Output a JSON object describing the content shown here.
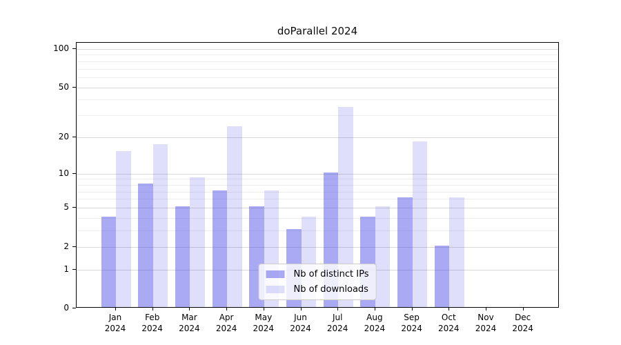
{
  "title": "doParallel 2024",
  "legend": {
    "items": [
      {
        "label": "Nb of distinct IPs",
        "series": "ips"
      },
      {
        "label": "Nb of downloads",
        "series": "downloads"
      }
    ]
  },
  "axes": {
    "y_ticks": [
      {
        "label": "100",
        "value": 100
      },
      {
        "label": "50",
        "value": 50
      },
      {
        "label": "20",
        "value": 20
      },
      {
        "label": "10",
        "value": 10
      },
      {
        "label": "5",
        "value": 5
      },
      {
        "label": "2",
        "value": 2
      },
      {
        "label": "1",
        "value": 1
      },
      {
        "label": "0",
        "value": 0
      }
    ],
    "y_minor_values": [
      3,
      4,
      6,
      7,
      8,
      9,
      30,
      40,
      60,
      70,
      80,
      90
    ],
    "x_months": [
      "Jan",
      "Feb",
      "Mar",
      "Apr",
      "May",
      "Jun",
      "Jul",
      "Aug",
      "Sep",
      "Oct",
      "Nov",
      "Dec"
    ],
    "x_year": "2024"
  },
  "colors": {
    "ips_bar": "rgba(64,64,230,0.45)",
    "downloads_bar": "rgba(64,64,230,0.17)",
    "ips_bar_hex_on_white": "#a9a9f4",
    "downloads_bar_hex_on_white": "#dedefa",
    "grid_major": "#d8d8d8",
    "grid_minor": "#eeeeee",
    "axis_line": "#000000"
  },
  "chart_data": {
    "type": "bar",
    "title": "doParallel 2024",
    "categories": [
      "Jan 2024",
      "Feb 2024",
      "Mar 2024",
      "Apr 2024",
      "May 2024",
      "Jun 2024",
      "Jul 2024",
      "Aug 2024",
      "Sep 2024",
      "Oct 2024",
      "Nov 2024",
      "Dec 2024"
    ],
    "series": [
      {
        "name": "Nb of distinct IPs",
        "values": [
          4,
          8,
          5,
          7,
          5,
          3,
          10,
          4,
          6,
          2,
          0,
          0
        ]
      },
      {
        "name": "Nb of downloads",
        "values": [
          15,
          17,
          9,
          24,
          7,
          4,
          34,
          5,
          18,
          6,
          0,
          0
        ]
      }
    ],
    "y_scale": "log1p",
    "y_axis_ticks": [
      0,
      1,
      2,
      5,
      10,
      20,
      50,
      100
    ],
    "ylim": [
      0,
      113
    ],
    "xlabel": "",
    "ylabel": "",
    "grid": true,
    "legend_position": "lower center"
  }
}
